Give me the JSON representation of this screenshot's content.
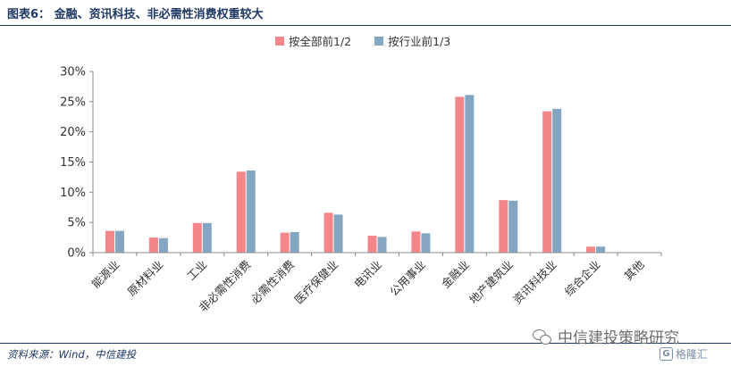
{
  "header": {
    "title": "图表6： 金融、资讯科技、非必需性消费权重较大"
  },
  "footer": {
    "source": "资料来源：Wind，中信建投"
  },
  "watermark": {
    "text": "中信建投策略研究"
  },
  "logo": {
    "text": "格隆汇",
    "mark": "G"
  },
  "colors": {
    "series1": "#f4868a",
    "series2": "#85a6c3",
    "axis": "#8c8c8c",
    "text": "#333333"
  },
  "chart_data": {
    "type": "bar",
    "categories": [
      "能源业",
      "原材料业",
      "工业",
      "非必需性消费",
      "必需性消费",
      "医疗保健业",
      "电讯业",
      "公用事业",
      "金融业",
      "地产建筑业",
      "资讯科技业",
      "综合企业",
      "其他"
    ],
    "series": [
      {
        "name": "按全部前1/2",
        "values": [
          3.6,
          2.5,
          4.9,
          13.4,
          3.3,
          6.6,
          2.8,
          3.5,
          25.8,
          8.7,
          23.4,
          1.0,
          0
        ]
      },
      {
        "name": "按行业前1/3",
        "values": [
          3.6,
          2.4,
          4.9,
          13.6,
          3.4,
          6.3,
          2.6,
          3.2,
          26.1,
          8.6,
          23.8,
          1.0,
          0
        ]
      }
    ],
    "ylim": [
      0,
      30
    ],
    "yticks": [
      "0%",
      "5%",
      "10%",
      "15%",
      "20%",
      "25%",
      "30%"
    ],
    "xlabel": "",
    "ylabel": "",
    "grid": false,
    "legend_position": "top-center"
  }
}
